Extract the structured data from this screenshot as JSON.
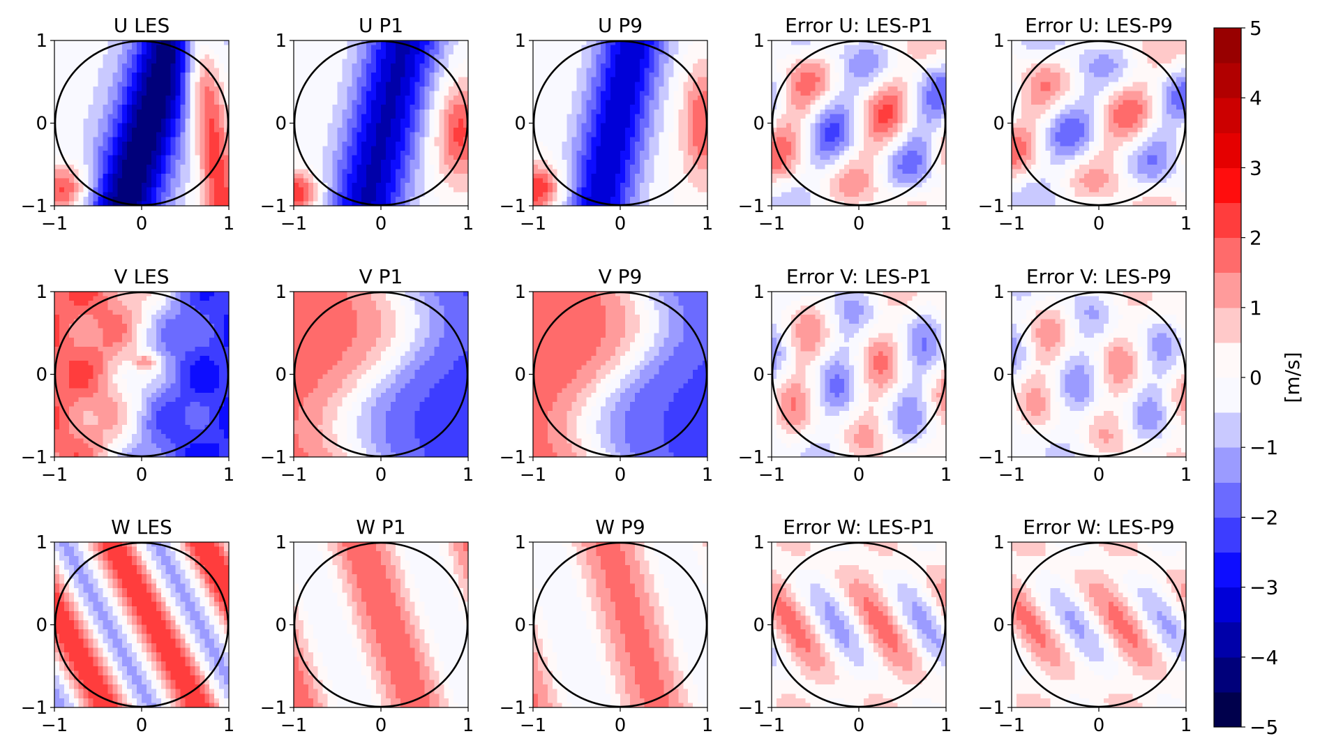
{
  "chart_data": {
    "type": "heatmap",
    "description_rows": [
      "U",
      "V",
      "W"
    ],
    "panels": [
      {
        "id": "u-les",
        "title": "U LES",
        "xlim": [
          -1,
          1
        ],
        "ylim": [
          -1,
          1
        ],
        "xticks": [
          "−1",
          "0",
          "1"
        ],
        "yticks": [
          "1",
          "0",
          "−1"
        ]
      },
      {
        "id": "u-p1",
        "title": "U P1",
        "xlim": [
          -1,
          1
        ],
        "ylim": [
          -1,
          1
        ],
        "xticks": [
          "−1",
          "0",
          "1"
        ],
        "yticks": [
          "1",
          "0",
          "−1"
        ]
      },
      {
        "id": "u-p9",
        "title": "U P9",
        "xlim": [
          -1,
          1
        ],
        "ylim": [
          -1,
          1
        ],
        "xticks": [
          "−1",
          "0",
          "1"
        ],
        "yticks": [
          "1",
          "0",
          "−1"
        ]
      },
      {
        "id": "err-u-p1",
        "title": "Error U: LES-P1",
        "xlim": [
          -1,
          1
        ],
        "ylim": [
          -1,
          1
        ],
        "xticks": [
          "−1",
          "0",
          "1"
        ],
        "yticks": [
          "1",
          "0",
          "−1"
        ]
      },
      {
        "id": "err-u-p9",
        "title": "Error U: LES-P9",
        "xlim": [
          -1,
          1
        ],
        "ylim": [
          -1,
          1
        ],
        "xticks": [
          "−1",
          "0",
          "1"
        ],
        "yticks": [
          "1",
          "0",
          "−1"
        ]
      },
      {
        "id": "v-les",
        "title": "V LES",
        "xlim": [
          -1,
          1
        ],
        "ylim": [
          -1,
          1
        ],
        "xticks": [
          "−1",
          "0",
          "1"
        ],
        "yticks": [
          "1",
          "0",
          "−1"
        ]
      },
      {
        "id": "v-p1",
        "title": "V P1",
        "xlim": [
          -1,
          1
        ],
        "ylim": [
          -1,
          1
        ],
        "xticks": [
          "−1",
          "0",
          "1"
        ],
        "yticks": [
          "1",
          "0",
          "−1"
        ]
      },
      {
        "id": "v-p9",
        "title": "V P9",
        "xlim": [
          -1,
          1
        ],
        "ylim": [
          -1,
          1
        ],
        "xticks": [
          "−1",
          "0",
          "1"
        ],
        "yticks": [
          "1",
          "0",
          "−1"
        ]
      },
      {
        "id": "err-v-p1",
        "title": "Error V: LES-P1",
        "xlim": [
          -1,
          1
        ],
        "ylim": [
          -1,
          1
        ],
        "xticks": [
          "−1",
          "0",
          "1"
        ],
        "yticks": [
          "1",
          "0",
          "−1"
        ]
      },
      {
        "id": "err-v-p9",
        "title": "Error V: LES-P9",
        "xlim": [
          -1,
          1
        ],
        "ylim": [
          -1,
          1
        ],
        "xticks": [
          "−1",
          "0",
          "1"
        ],
        "yticks": [
          "1",
          "0",
          "−1"
        ]
      },
      {
        "id": "w-les",
        "title": "W LES",
        "xlim": [
          -1,
          1
        ],
        "ylim": [
          -1,
          1
        ],
        "xticks": [
          "−1",
          "0",
          "1"
        ],
        "yticks": [
          "1",
          "0",
          "−1"
        ]
      },
      {
        "id": "w-p1",
        "title": "W P1",
        "xlim": [
          -1,
          1
        ],
        "ylim": [
          -1,
          1
        ],
        "xticks": [
          "−1",
          "0",
          "1"
        ],
        "yticks": [
          "1",
          "0",
          "−1"
        ]
      },
      {
        "id": "w-p9",
        "title": "W P9",
        "xlim": [
          -1,
          1
        ],
        "ylim": [
          -1,
          1
        ],
        "xticks": [
          "−1",
          "0",
          "1"
        ],
        "yticks": [
          "1",
          "0",
          "−1"
        ]
      },
      {
        "id": "err-w-p1",
        "title": "Error W: LES-P1",
        "xlim": [
          -1,
          1
        ],
        "ylim": [
          -1,
          1
        ],
        "xticks": [
          "−1",
          "0",
          "1"
        ],
        "yticks": [
          "1",
          "0",
          "−1"
        ]
      },
      {
        "id": "err-w-p9",
        "title": "Error W: LES-P9",
        "xlim": [
          -1,
          1
        ],
        "ylim": [
          -1,
          1
        ],
        "xticks": [
          "−1",
          "0",
          "1"
        ],
        "yticks": [
          "1",
          "0",
          "−1"
        ]
      }
    ],
    "reference_circle": {
      "center": [
        0,
        0
      ],
      "radius": 1,
      "color": "#000000"
    },
    "colorbar": {
      "label": "[m/s]",
      "vmin": -5,
      "vmax": 5,
      "levels": 20,
      "ticks": [
        5,
        4,
        3,
        2,
        1,
        0,
        -1,
        -2,
        -3,
        -4,
        -5
      ],
      "tick_labels": [
        "5",
        "4",
        "3",
        "2",
        "1",
        "0",
        "−1",
        "−2",
        "−3",
        "−4",
        "−5"
      ],
      "colormap": "seismic",
      "colors_low_to_high": [
        "#00004c",
        "#00007a",
        "#0000a9",
        "#0000d8",
        "#0d0dff",
        "#3d3dff",
        "#6b6bff",
        "#9b9bff",
        "#c9c9ff",
        "#f9f9ff",
        "#fff9f9",
        "#ffc9c9",
        "#ff9b9b",
        "#ff6b6b",
        "#ff3d3d",
        "#ff0d0d",
        "#e50000",
        "#cc0000",
        "#b10000",
        "#980000"
      ]
    }
  }
}
